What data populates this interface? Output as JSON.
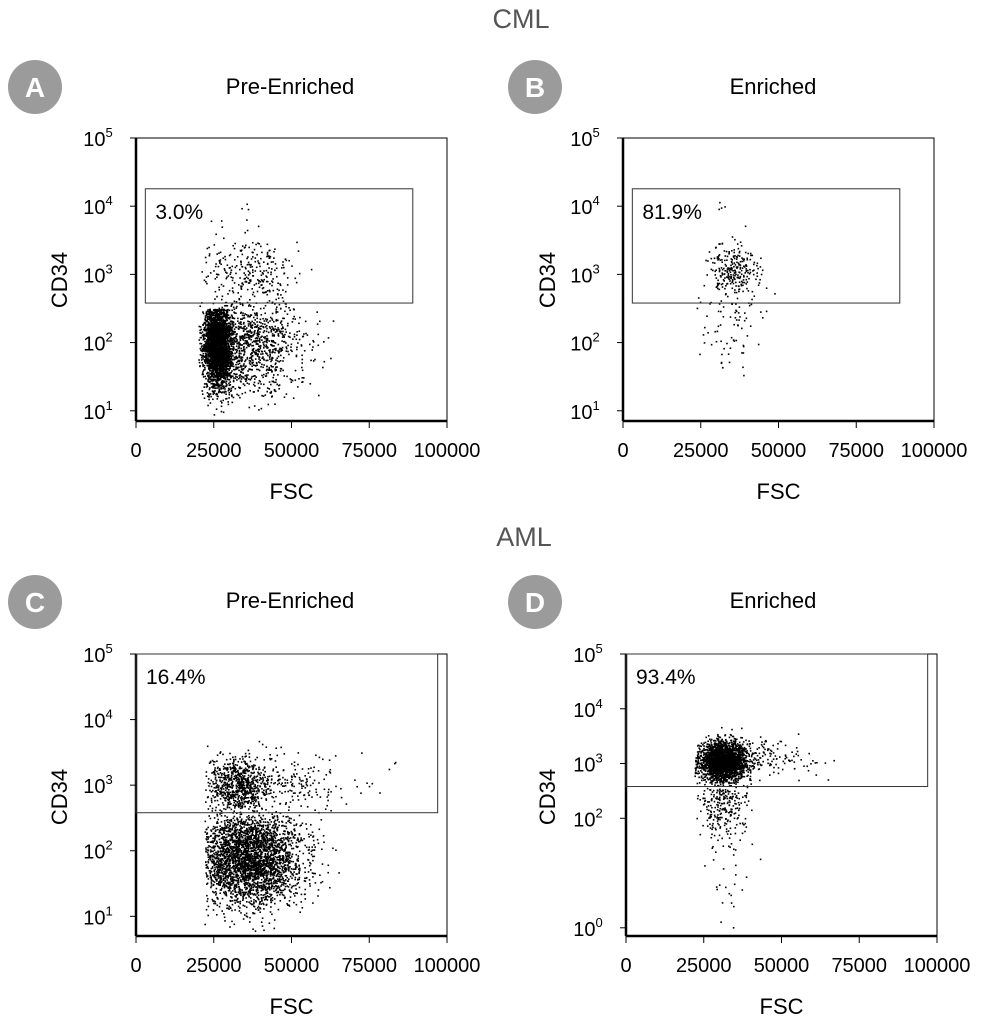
{
  "section_titles": [
    "CML",
    "AML"
  ],
  "badge_color": "#9b9b9b",
  "text_color": "#000000",
  "section_title_color": "#555555",
  "chart_data": [
    {
      "type": "scatter",
      "badge": "A",
      "title": "Pre-Enriched",
      "xlabel": "FSC",
      "ylabel": "CD34",
      "xlim": [
        0,
        100000
      ],
      "ylim_log10": [
        0.85,
        5
      ],
      "y_scale": "log",
      "x_ticks": [
        "0",
        "25000",
        "50000",
        "75000",
        "100000"
      ],
      "y_ticks": [
        {
          "base": "10",
          "exp": "1",
          "value": 10
        },
        {
          "base": "10",
          "exp": "2",
          "value": 100
        },
        {
          "base": "10",
          "exp": "3",
          "value": 1000
        },
        {
          "base": "10",
          "exp": "4",
          "value": 10000
        },
        {
          "base": "10",
          "exp": "5",
          "value": 100000
        }
      ],
      "gate": {
        "label": "3.0%",
        "x_range": [
          3000,
          89000
        ],
        "y_range": [
          380,
          18000
        ]
      },
      "clusters": [
        {
          "n": 2600,
          "cx": 26000,
          "sx": 2200,
          "cy": 2.0,
          "sy": 0.32,
          "xmin": 20000,
          "xmax": 66000,
          "ymin": 0.92,
          "ymax": 2.5
        },
        {
          "n": 1100,
          "cx": 36000,
          "sx": 9000,
          "cy": 1.95,
          "sy": 0.35,
          "xmin": 20000,
          "xmax": 66000,
          "ymin": 0.92,
          "ymax": 2.6
        },
        {
          "n": 280,
          "cx": 36000,
          "sx": 8000,
          "cy": 3.05,
          "sy": 0.3,
          "xmin": 20000,
          "xmax": 66000,
          "ymin": 2.55,
          "ymax": 3.5
        },
        {
          "n": 12,
          "cx": 30000,
          "sx": 6000,
          "cy": 3.9,
          "sy": 0.2,
          "xmin": 20000,
          "xmax": 60000,
          "ymin": 3.5,
          "ymax": 4.2
        }
      ],
      "seed": 11
    },
    {
      "type": "scatter",
      "badge": "B",
      "title": "Enriched",
      "xlabel": "FSC",
      "ylabel": "CD34",
      "xlim": [
        0,
        100000
      ],
      "ylim_log10": [
        0.85,
        5
      ],
      "y_scale": "log",
      "x_ticks": [
        "0",
        "25000",
        "50000",
        "75000",
        "100000"
      ],
      "y_ticks": [
        {
          "base": "10",
          "exp": "1",
          "value": 10
        },
        {
          "base": "10",
          "exp": "2",
          "value": 100
        },
        {
          "base": "10",
          "exp": "3",
          "value": 1000
        },
        {
          "base": "10",
          "exp": "4",
          "value": 10000
        },
        {
          "base": "10",
          "exp": "5",
          "value": 100000
        }
      ],
      "gate": {
        "label": "81.9%",
        "x_range": [
          3000,
          89000
        ],
        "y_range": [
          380,
          18000
        ]
      },
      "clusters": [
        {
          "n": 260,
          "cx": 35000,
          "sx": 4000,
          "cy": 3.05,
          "sy": 0.2,
          "xmin": 24000,
          "xmax": 58000,
          "ymin": 2.6,
          "ymax": 3.6
        },
        {
          "n": 70,
          "cx": 34000,
          "sx": 4500,
          "cy": 2.2,
          "sy": 0.4,
          "xmin": 22000,
          "xmax": 52000,
          "ymin": 1.05,
          "ymax": 2.6
        },
        {
          "n": 5,
          "cx": 34000,
          "sx": 3000,
          "cy": 3.9,
          "sy": 0.15,
          "xmin": 28000,
          "xmax": 42000,
          "ymin": 3.6,
          "ymax": 4.2
        }
      ],
      "seed": 23
    },
    {
      "type": "scatter",
      "badge": "C",
      "title": "Pre-Enriched",
      "xlabel": "FSC",
      "ylabel": "CD34",
      "xlim": [
        0,
        100000
      ],
      "ylim_log10": [
        0.7,
        5
      ],
      "y_scale": "log",
      "x_ticks": [
        "0",
        "25000",
        "50000",
        "75000",
        "100000"
      ],
      "y_ticks": [
        {
          "base": "10",
          "exp": "1",
          "value": 10
        },
        {
          "base": "10",
          "exp": "2",
          "value": 100
        },
        {
          "base": "10",
          "exp": "3",
          "value": 1000
        },
        {
          "base": "10",
          "exp": "4",
          "value": 10000
        },
        {
          "base": "10",
          "exp": "5",
          "value": 100000
        }
      ],
      "gate": {
        "label": "16.4%",
        "x_range": [
          0,
          97000
        ],
        "y_range": [
          380,
          100000
        ]
      },
      "clusters": [
        {
          "n": 3000,
          "cx": 36000,
          "sx": 9000,
          "cy": 1.9,
          "sy": 0.38,
          "xmin": 22000,
          "xmax": 82000,
          "ymin": 0.72,
          "ymax": 2.55
        },
        {
          "n": 700,
          "cx": 33000,
          "sx": 5000,
          "cy": 3.0,
          "sy": 0.22,
          "xmin": 22000,
          "xmax": 70000,
          "ymin": 2.55,
          "ymax": 3.5
        },
        {
          "n": 260,
          "cx": 45000,
          "sx": 14000,
          "cy": 3.0,
          "sy": 0.3,
          "xmin": 22000,
          "xmax": 84000,
          "ymin": 2.55,
          "ymax": 3.7
        }
      ],
      "seed": 37
    },
    {
      "type": "scatter",
      "badge": "D",
      "title": "Enriched",
      "xlabel": "FSC",
      "ylabel": "CD34",
      "xlim": [
        0,
        100000
      ],
      "ylim_log10": [
        -0.15,
        5
      ],
      "y_scale": "log",
      "x_ticks": [
        "0",
        "25000",
        "50000",
        "75000",
        "100000"
      ],
      "y_ticks": [
        {
          "base": "10",
          "exp": "0",
          "value": 1
        },
        {
          "base": "10",
          "exp": "2",
          "value": 100
        },
        {
          "base": "10",
          "exp": "3",
          "value": 1000
        },
        {
          "base": "10",
          "exp": "4",
          "value": 10000
        },
        {
          "base": "10",
          "exp": "5",
          "value": 100000
        }
      ],
      "gate": {
        "label": "93.4%",
        "x_range": [
          0,
          97000
        ],
        "y_range": [
          380,
          100000
        ]
      },
      "clusters": [
        {
          "n": 2400,
          "cx": 31000,
          "sx": 3800,
          "cy": 3.05,
          "sy": 0.18,
          "xmin": 22000,
          "xmax": 70000,
          "ymin": 2.55,
          "ymax": 3.7
        },
        {
          "n": 160,
          "cx": 44000,
          "sx": 9000,
          "cy": 3.1,
          "sy": 0.2,
          "xmin": 25000,
          "xmax": 70000,
          "ymin": 2.7,
          "ymax": 3.6
        },
        {
          "n": 240,
          "cx": 31000,
          "sx": 4000,
          "cy": 2.3,
          "sy": 0.35,
          "xmin": 22000,
          "xmax": 50000,
          "ymin": 1.2,
          "ymax": 2.55
        },
        {
          "n": 25,
          "cx": 33000,
          "sx": 5000,
          "cy": 0.9,
          "sy": 0.45,
          "xmin": 25000,
          "xmax": 46000,
          "ymin": 0.0,
          "ymax": 1.6
        }
      ],
      "seed": 53
    }
  ]
}
